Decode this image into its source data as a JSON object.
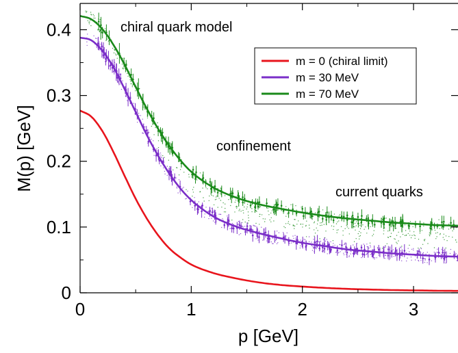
{
  "chart_data": {
    "type": "line",
    "title": "",
    "xlabel": "p [GeV]",
    "ylabel": "M(p) [GeV]",
    "xlim": [
      0,
      3.4
    ],
    "ylim": [
      0,
      0.44
    ],
    "x_ticks": [
      "0",
      "1",
      "2",
      "3"
    ],
    "x_tick_values": [
      0,
      1,
      2,
      3
    ],
    "y_ticks": [
      "0",
      "0.1",
      "0.2",
      "0.3",
      "0.4"
    ],
    "y_tick_values": [
      0,
      0.1,
      0.2,
      0.3,
      0.4
    ],
    "grid": false,
    "legend_position": "top-right",
    "annotations": {
      "chiral": "chiral quark model",
      "confinement": "confinement",
      "current": "current quarks"
    },
    "x": [
      0,
      0.1,
      0.2,
      0.3,
      0.4,
      0.5,
      0.6,
      0.7,
      0.8,
      0.9,
      1.0,
      1.2,
      1.4,
      1.6,
      1.8,
      2.0,
      2.2,
      2.4,
      2.6,
      2.8,
      3.0,
      3.2,
      3.4
    ],
    "series": [
      {
        "name": "m = 0 (chiral limit)",
        "color": "#e8141c",
        "values": [
          0.277,
          0.268,
          0.246,
          0.214,
          0.178,
          0.143,
          0.113,
          0.088,
          0.068,
          0.054,
          0.043,
          0.03,
          0.022,
          0.016,
          0.012,
          0.0095,
          0.0075,
          0.006,
          0.005,
          0.0042,
          0.0037,
          0.0032,
          0.0029
        ]
      },
      {
        "name": "m = 30 MeV",
        "color": "#7a2dc8",
        "values": [
          0.388,
          0.384,
          0.368,
          0.343,
          0.31,
          0.275,
          0.24,
          0.209,
          0.182,
          0.159,
          0.141,
          0.116,
          0.101,
          0.091,
          0.083,
          0.076,
          0.071,
          0.066,
          0.063,
          0.06,
          0.058,
          0.056,
          0.055
        ]
      },
      {
        "name": "m = 70 MeV",
        "color": "#1a8a1a",
        "values": [
          0.421,
          0.416,
          0.401,
          0.377,
          0.347,
          0.313,
          0.28,
          0.25,
          0.224,
          0.202,
          0.184,
          0.16,
          0.145,
          0.135,
          0.128,
          0.122,
          0.117,
          0.113,
          0.11,
          0.107,
          0.105,
          0.103,
          0.102
        ]
      }
    ]
  }
}
